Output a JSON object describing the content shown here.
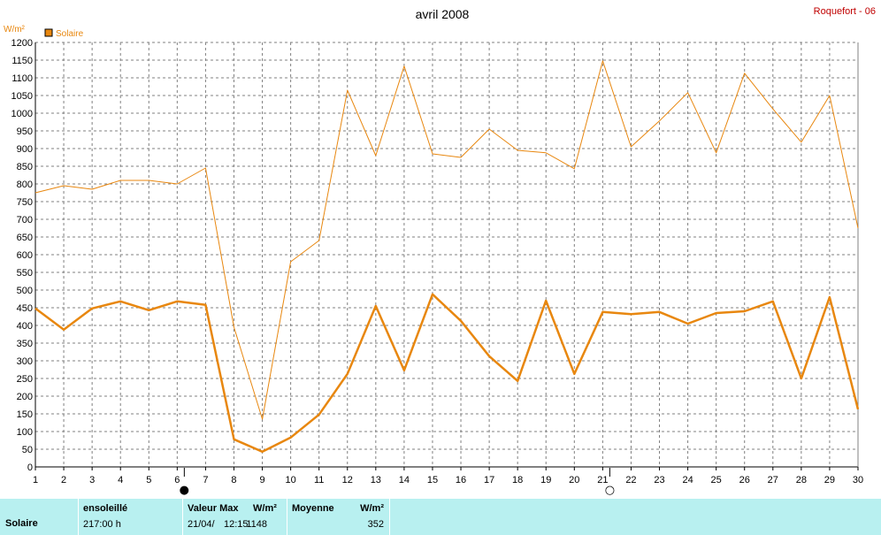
{
  "chart_data": {
    "type": "line",
    "title": "avril 2008",
    "station": "Roquefort - 06",
    "unit": "W/m²",
    "legend": "Solaire",
    "x": [
      1,
      2,
      3,
      4,
      5,
      6,
      7,
      8,
      9,
      10,
      11,
      12,
      13,
      14,
      15,
      16,
      17,
      18,
      19,
      20,
      21,
      22,
      23,
      24,
      25,
      26,
      27,
      28,
      29,
      30
    ],
    "ylim": [
      0,
      1200
    ],
    "y_ticks": [
      0,
      50,
      100,
      150,
      200,
      250,
      300,
      350,
      400,
      450,
      500,
      550,
      600,
      650,
      700,
      750,
      800,
      850,
      900,
      950,
      1000,
      1050,
      1100,
      1150,
      1200
    ],
    "grid": true,
    "series": [
      {
        "values": [
          775,
          795,
          785,
          810,
          810,
          800,
          845,
          395,
          135,
          580,
          640,
          1065,
          880,
          1133,
          885,
          875,
          955,
          895,
          888,
          843,
          1148,
          905,
          978,
          1058,
          888,
          1113,
          1012,
          918,
          1050,
          675
        ],
        "color": "#e8870f",
        "width": 1
      },
      {
        "values": [
          448,
          388,
          448,
          468,
          443,
          468,
          458,
          78,
          43,
          83,
          148,
          263,
          455,
          273,
          488,
          413,
          313,
          243,
          470,
          263,
          438,
          432,
          438,
          405,
          435,
          440,
          468,
          250,
          480,
          163
        ],
        "color": "#e8870f",
        "width": 2.5
      }
    ],
    "moon_markers": [
      {
        "day": 6,
        "symbol": "●"
      },
      {
        "day": 21,
        "symbol": "○"
      }
    ]
  },
  "footer": {
    "label": "Solaire",
    "sun_title": "ensoleillé",
    "sun_value": "217:00 h",
    "max_title": "Valeur Max",
    "max_unit": "W/m²",
    "max_date": "21/04/",
    "max_time": "12:15",
    "max_value": "1148",
    "avg_title": "Moyenne",
    "avg_unit": "W/m²",
    "avg_value": "352"
  },
  "colors": {
    "line": "#e8870f",
    "station": "#c00000",
    "legend_text": "#e8870f",
    "footer_bg": "#b8f0f0"
  }
}
